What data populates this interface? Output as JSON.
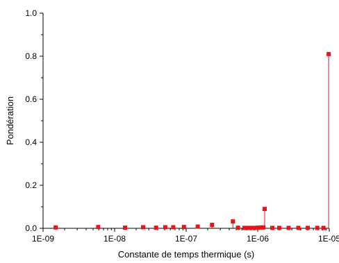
{
  "chart_data": {
    "type": "scatter",
    "style": "stem",
    "xlabel": "Constante de temps thermique (s)",
    "ylabel": "Pondération",
    "x_scale": "log",
    "xlim": [
      1e-09,
      1e-05
    ],
    "ylim": [
      0,
      1.0
    ],
    "x_ticks": [
      1e-09,
      1e-08,
      1e-07,
      1e-06,
      1e-05
    ],
    "x_tick_labels": [
      "1E-09",
      "1E-08",
      "1E-07",
      "1E-06",
      "1E-05"
    ],
    "y_ticks": [
      0,
      0.2,
      0.4,
      0.6,
      0.8,
      1.0
    ],
    "y_tick_labels": [
      "0.0",
      "0.2",
      "0.4",
      "0.6",
      "0.8",
      "1.0"
    ],
    "grid": false,
    "legend": "none",
    "color": "#e8141b",
    "series": [
      {
        "x": [
          1.5e-09,
          5.9e-09,
          1.4e-08,
          2.5e-08,
          3.8e-08,
          5.1e-08,
          6.6e-08,
          9.3e-08,
          1.45e-07,
          2.3e-07,
          4.5e-07,
          5.3e-07,
          6.5e-07,
          7.3e-07,
          8.2e-07,
          9e-07,
          1e-06,
          1.1e-06,
          1.2e-06,
          1.25e-06,
          1.6e-06,
          2e-06,
          2.7e-06,
          3.7e-06,
          5e-06,
          6.8e-06,
          8.3e-06,
          9.8e-06
        ],
        "y": [
          0.004,
          0.006,
          0.003,
          0.005,
          0.003,
          0.005,
          0.005,
          0.006,
          0.008,
          0.016,
          0.032,
          0.003,
          0.002,
          0.002,
          0.002,
          0.002,
          0.003,
          0.004,
          0.004,
          0.09,
          0.002,
          0.002,
          0.002,
          0.002,
          0.002,
          0.002,
          0.002,
          0.81
        ]
      }
    ]
  }
}
